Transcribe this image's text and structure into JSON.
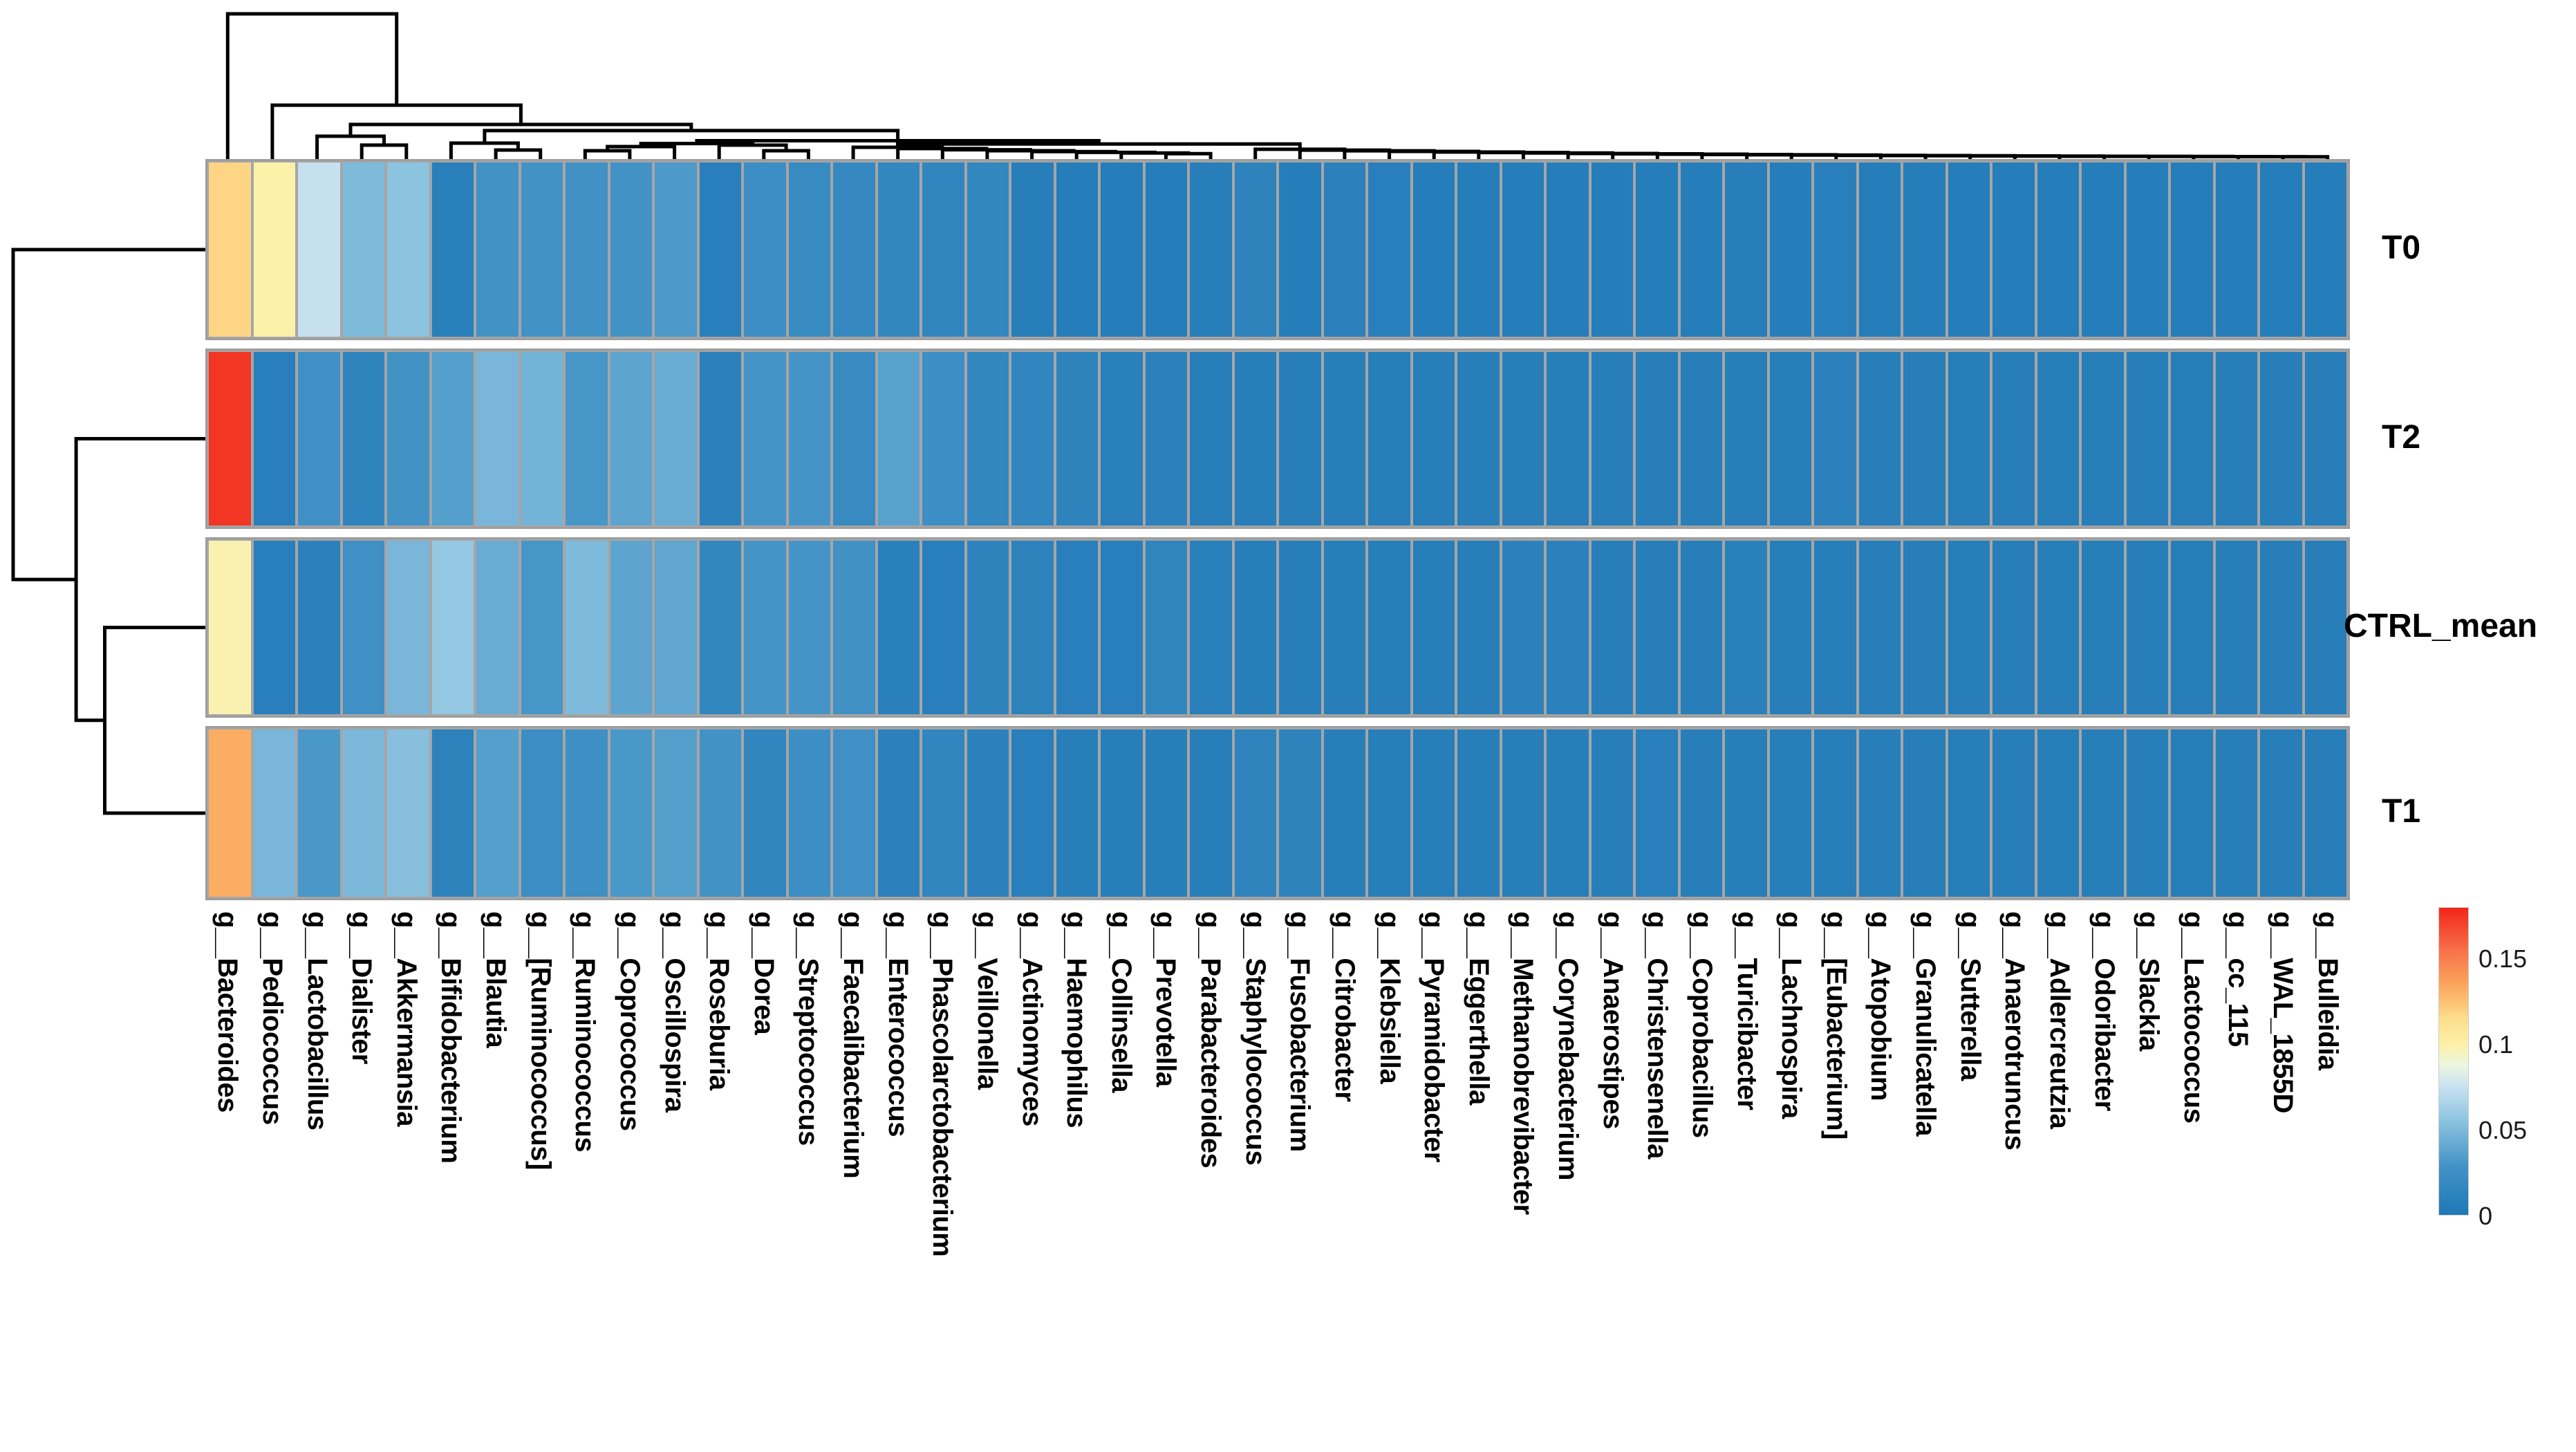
{
  "chart_data": {
    "type": "heatmap",
    "title": "",
    "rows": [
      "T0",
      "T2",
      "CTRL_mean",
      "T1"
    ],
    "columns": [
      "g__Bacteroides",
      "g__Pediococcus",
      "g__Lactobacillus",
      "g__Dialister",
      "g__Akkermansia",
      "g__Bifidobacterium",
      "g__Blautia",
      "g__[Ruminococcus]",
      "g__Ruminococcus",
      "g__Coprococcus",
      "g__Oscillospira",
      "g__Roseburia",
      "g__Dorea",
      "g__Streptococcus",
      "g__Faecalibacterium",
      "g__Enterococcus",
      "g__Phascolarctobacterium",
      "g__Veillonella",
      "g__Actinomyces",
      "g__Haemophilus",
      "g__Collinsella",
      "g__Prevotella",
      "g__Parabacteroides",
      "g__Staphylococcus",
      "g__Fusobacterium",
      "g__Citrobacter",
      "g__Klebsiella",
      "g__Pyramidobacter",
      "g__Eggerthella",
      "g__Methanobrevibacter",
      "g__Corynebacterium",
      "g__Anaerostipes",
      "g__Christensenella",
      "g__Coprobacillus",
      "g__Turicibacter",
      "g__Lachnospira",
      "g__[Eubacterium]",
      "g__Atopobium",
      "g__Granulicatella",
      "g__Sutterella",
      "g__Anaerotruncus",
      "g__Adlercreutzia",
      "g__Odoribacter",
      "g__Slackia",
      "g__Lactococcus",
      "g__cc_115",
      "g__WAL_1855D",
      "g__Bulleidia"
    ],
    "values": [
      [
        0.118,
        0.1,
        0.074,
        0.05,
        0.055,
        0.007,
        0.028,
        0.028,
        0.027,
        0.028,
        0.032,
        0.008,
        0.024,
        0.02,
        0.018,
        0.016,
        0.014,
        0.016,
        0.006,
        0.005,
        0.005,
        0.005,
        0.006,
        0.012,
        0.005,
        0.01,
        0.008,
        0.005,
        0.005,
        0.005,
        0.005,
        0.005,
        0.005,
        0.005,
        0.006,
        0.005,
        0.008,
        0.005,
        0.005,
        0.005,
        0.005,
        0.005,
        0.005,
        0.005,
        0.005,
        0.005,
        0.005,
        0.005
      ],
      [
        0.175,
        0.008,
        0.026,
        0.013,
        0.028,
        0.035,
        0.048,
        0.046,
        0.03,
        0.038,
        0.042,
        0.01,
        0.029,
        0.029,
        0.02,
        0.036,
        0.024,
        0.016,
        0.015,
        0.012,
        0.007,
        0.01,
        0.006,
        0.006,
        0.006,
        0.006,
        0.006,
        0.006,
        0.006,
        0.006,
        0.006,
        0.006,
        0.006,
        0.006,
        0.006,
        0.006,
        0.01,
        0.006,
        0.006,
        0.006,
        0.006,
        0.006,
        0.006,
        0.006,
        0.006,
        0.006,
        0.006,
        0.006
      ],
      [
        0.098,
        0.008,
        0.01,
        0.026,
        0.048,
        0.058,
        0.042,
        0.03,
        0.05,
        0.038,
        0.039,
        0.016,
        0.029,
        0.029,
        0.027,
        0.009,
        0.008,
        0.012,
        0.011,
        0.008,
        0.008,
        0.014,
        0.007,
        0.006,
        0.006,
        0.006,
        0.006,
        0.006,
        0.006,
        0.01,
        0.01,
        0.006,
        0.006,
        0.006,
        0.009,
        0.006,
        0.006,
        0.006,
        0.006,
        0.006,
        0.006,
        0.006,
        0.006,
        0.006,
        0.006,
        0.006,
        0.006,
        0.006
      ],
      [
        0.132,
        0.048,
        0.031,
        0.049,
        0.053,
        0.011,
        0.035,
        0.023,
        0.025,
        0.031,
        0.035,
        0.028,
        0.015,
        0.024,
        0.026,
        0.01,
        0.015,
        0.01,
        0.008,
        0.006,
        0.006,
        0.006,
        0.006,
        0.013,
        0.012,
        0.006,
        0.006,
        0.006,
        0.006,
        0.006,
        0.006,
        0.006,
        0.008,
        0.006,
        0.006,
        0.006,
        0.006,
        0.006,
        0.006,
        0.006,
        0.006,
        0.006,
        0.006,
        0.006,
        0.006,
        0.006,
        0.006,
        0.006
      ]
    ],
    "colorbar": {
      "domain": [
        0,
        0.18
      ],
      "tick_labels": [
        "0.15",
        "0.1",
        "0.05",
        "0"
      ],
      "tick_values": [
        0.15,
        0.1,
        0.05,
        0
      ],
      "stops": [
        [
          0.0,
          "#1F78B6"
        ],
        [
          0.028,
          "#4292C6"
        ],
        [
          0.055,
          "#8CC3DF"
        ],
        [
          0.075,
          "#C9E2F1"
        ],
        [
          0.088,
          "#EDF6E0"
        ],
        [
          0.1,
          "#FDF0A8"
        ],
        [
          0.115,
          "#FDDE8C"
        ],
        [
          0.135,
          "#FBA55C"
        ],
        [
          0.155,
          "#F7714A"
        ],
        [
          0.18,
          "#F2261B"
        ]
      ],
      "position": "bottom-right"
    },
    "row_dendrogram": {
      "h": 1.0,
      "children": [
        {
          "leaf": 0
        },
        {
          "h": 0.67,
          "children": [
            {
              "leaf": 1
            },
            {
              "h": 0.52,
              "children": [
                {
                  "leaf": 2
                },
                {
                  "leaf": 3
                }
              ]
            }
          ]
        }
      ]
    },
    "col_dendrogram": {
      "h": 1.0,
      "children": [
        {
          "leaf": 0
        },
        {
          "h": 0.365,
          "children": [
            {
              "leaf": 1
            },
            {
              "h": 0.231,
              "children": [
                {
                  "h": 0.149,
                  "children": [
                    {
                      "leaf": 2
                    },
                    {
                      "h": 0.087,
                      "children": [
                        {
                          "leaf": 3
                        },
                        {
                          "leaf": 4
                        }
                      ]
                    }
                  ]
                },
                {
                  "h": 0.188,
                  "children": [
                    {
                      "h": 0.101,
                      "children": [
                        {
                          "leaf": 5
                        },
                        {
                          "h": 0.053,
                          "children": [
                            {
                              "leaf": 6
                            },
                            {
                              "leaf": 7
                            }
                          ]
                        }
                      ]
                    },
                    {
                      "h": 0.118,
                      "children": [
                        {
                          "h": 0.098,
                          "children": [
                            {
                              "h": 0.077,
                              "children": [
                                {
                                  "h": 0.048,
                                  "children": [
                                    {
                                      "leaf": 8
                                    },
                                    {
                                      "leaf": 9
                                    }
                                  ]
                                },
                                {
                                  "leaf": 10
                                }
                              ]
                            },
                            {
                              "h": 0.087,
                              "children": [
                                {
                                  "leaf": 11
                                },
                                {
                                  "h": 0.048,
                                  "children": [
                                    {
                                      "leaf": 12
                                    },
                                    {
                                      "leaf": 13
                                    }
                                  ]
                                }
                              ]
                            }
                          ]
                        },
                        {
                          "h": 0.095,
                          "children": [
                            {
                              "comb": {
                                "from": 14,
                                "to": 22,
                                "hmax": 0.072,
                                "hmin": 0.028
                              }
                            },
                            {
                              "comb": {
                                "from": 23,
                                "to": 47,
                                "hmax": 0.058,
                                "hmin": 0.006
                              }
                            }
                          ]
                        }
                      ]
                    }
                  ]
                }
              ]
            }
          ]
        }
      ]
    },
    "grid": true,
    "xlabel": "",
    "ylabel": ""
  }
}
